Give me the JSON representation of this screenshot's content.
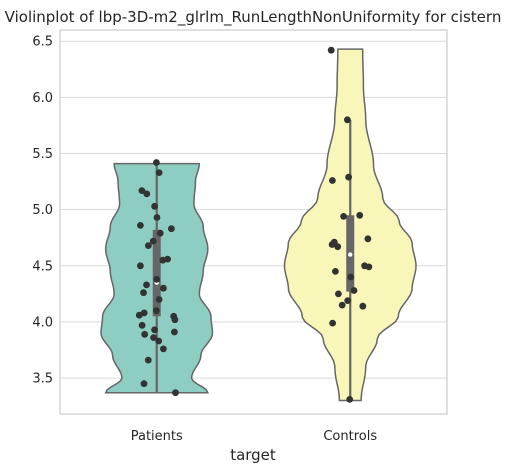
{
  "chart_data": {
    "type": "violin",
    "title": "Violinplot of lbp-3D-m2_glrlm_RunLengthNonUniformity for cistern",
    "xlabel": "target",
    "ylabel": "",
    "ylim": [
      3.18,
      6.6
    ],
    "yticks": [
      "3.5",
      "4.0",
      "4.5",
      "5.0",
      "5.5",
      "6.0",
      "6.5"
    ],
    "grid": true,
    "categories": [
      "Patients",
      "Controls"
    ],
    "groups": [
      {
        "name": "Patients",
        "color": "#8ecdc1",
        "clip_min": 3.37,
        "clip_max": 5.41,
        "profile": [
          [
            3.37,
            0.66
          ],
          [
            3.5,
            0.45
          ],
          [
            3.7,
            0.57
          ],
          [
            3.9,
            0.72
          ],
          [
            4.05,
            0.7
          ],
          [
            4.25,
            0.55
          ],
          [
            4.45,
            0.6
          ],
          [
            4.65,
            0.66
          ],
          [
            4.85,
            0.6
          ],
          [
            5.05,
            0.48
          ],
          [
            5.25,
            0.5
          ],
          [
            5.41,
            0.55
          ]
        ],
        "box": {
          "q1": 4.05,
          "median": 4.35,
          "q3": 4.82,
          "whisker_low": 3.37,
          "whisker_high": 5.41
        },
        "points": [
          5.42,
          5.33,
          5.17,
          5.14,
          5.03,
          4.93,
          4.86,
          4.83,
          4.79,
          4.72,
          4.68,
          4.56,
          4.55,
          4.5,
          4.38,
          4.33,
          4.3,
          4.26,
          4.2,
          4.1,
          4.08,
          4.06,
          4.05,
          4.02,
          3.97,
          3.93,
          3.91,
          3.89,
          3.86,
          3.83,
          3.76,
          3.66,
          3.45,
          3.37
        ]
      },
      {
        "name": "Controls",
        "color": "#f8f7b9",
        "clip_min": 3.3,
        "clip_max": 6.43,
        "profile": [
          [
            3.3,
            0.14
          ],
          [
            3.6,
            0.2
          ],
          [
            3.85,
            0.35
          ],
          [
            4.05,
            0.62
          ],
          [
            4.3,
            0.8
          ],
          [
            4.5,
            0.85
          ],
          [
            4.7,
            0.8
          ],
          [
            4.9,
            0.63
          ],
          [
            5.1,
            0.42
          ],
          [
            5.4,
            0.3
          ],
          [
            5.8,
            0.2
          ],
          [
            6.1,
            0.17
          ],
          [
            6.43,
            0.16
          ]
        ],
        "box": {
          "q1": 4.27,
          "median": 4.6,
          "q3": 4.95,
          "whisker_low": 3.3,
          "whisker_high": 5.8
        },
        "points": [
          6.42,
          5.8,
          5.29,
          5.26,
          4.95,
          4.94,
          4.74,
          4.71,
          4.69,
          4.67,
          4.5,
          4.49,
          4.45,
          4.4,
          4.28,
          4.25,
          4.19,
          4.15,
          4.14,
          3.99,
          3.31
        ]
      }
    ]
  }
}
